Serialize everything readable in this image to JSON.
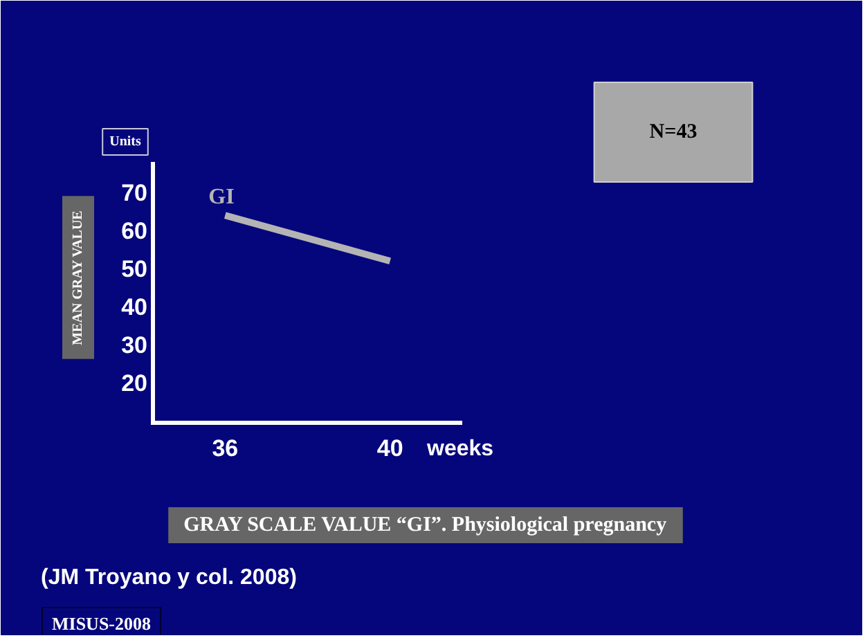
{
  "chart_data": {
    "type": "line",
    "title": "GRAY SCALE VALUE “GI”. Physiological pregnancy",
    "xlabel": "weeks",
    "ylabel": "MEAN GRAY VALUE",
    "x": [
      36,
      40
    ],
    "series": [
      {
        "name": "GI",
        "color": "#b4b4b4",
        "values": [
          64,
          52
        ]
      }
    ],
    "xlim": [
      34.25,
      41.7
    ],
    "ylim": [
      9.5,
      77.5
    ],
    "xticks": [
      36,
      40
    ],
    "yticks": [
      20,
      30,
      40,
      50,
      60,
      70
    ],
    "grid": false,
    "marker": "none",
    "line_style": "solid",
    "annotations": [
      "Units",
      "N=43",
      "(JM Troyano y col. 2008)",
      "MISUS-2008"
    ]
  }
}
